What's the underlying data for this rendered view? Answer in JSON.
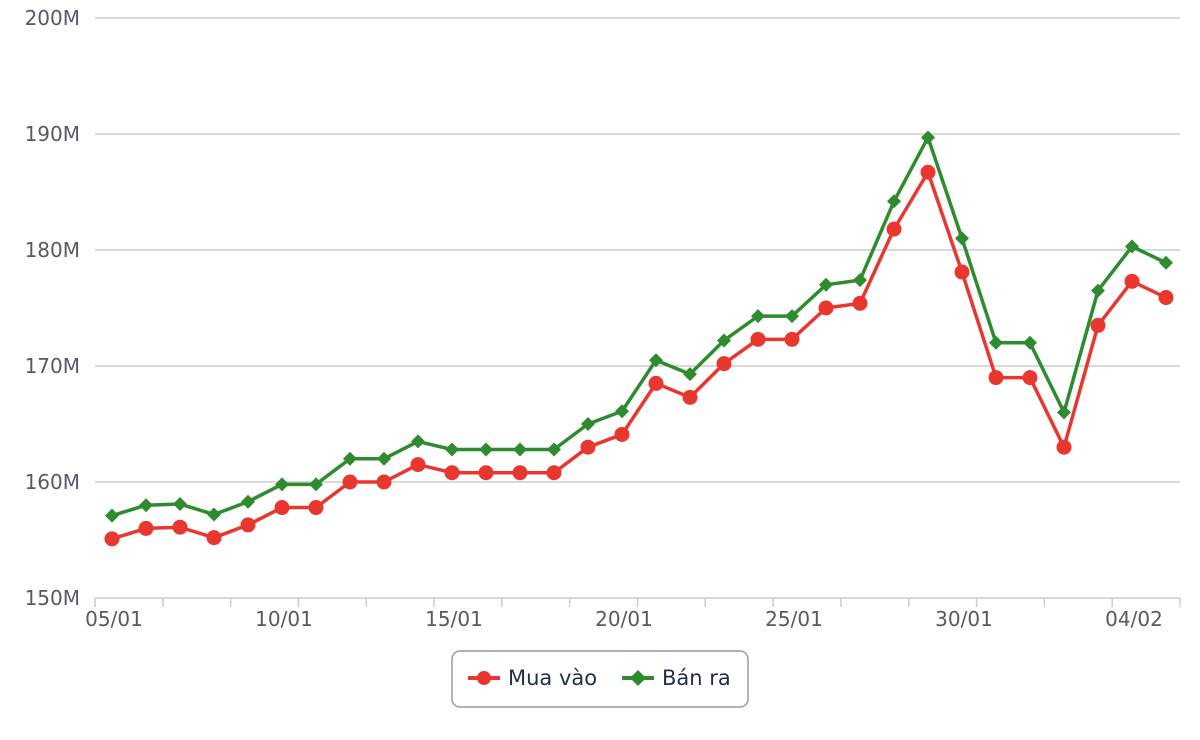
{
  "chart_data": {
    "type": "line",
    "title": "",
    "xlabel": "",
    "ylabel": "",
    "ylim": [
      150,
      200
    ],
    "y_unit_suffix": "M",
    "y_ticks": [
      "150M",
      "160M",
      "170M",
      "180M",
      "190M",
      "200M"
    ],
    "y_tick_values": [
      150,
      160,
      170,
      180,
      190,
      200
    ],
    "x_tick_labels": [
      {
        "index": 0,
        "label": "05/01"
      },
      {
        "index": 5,
        "label": "10/01"
      },
      {
        "index": 10,
        "label": "15/01"
      },
      {
        "index": 15,
        "label": "20/01"
      },
      {
        "index": 20,
        "label": "25/01"
      },
      {
        "index": 25,
        "label": "30/01"
      },
      {
        "index": 30,
        "label": "04/02"
      }
    ],
    "x": [
      "05/01",
      "06/01",
      "07/01",
      "08/01",
      "09/01",
      "10/01",
      "11/01",
      "12/01",
      "13/01",
      "14/01",
      "15/01",
      "16/01",
      "17/01",
      "18/01",
      "19/01",
      "20/01",
      "21/01",
      "22/01",
      "23/01",
      "24/01",
      "25/01",
      "26/01",
      "27/01",
      "28/01",
      "29/01",
      "30/01",
      "31/01",
      "01/02",
      "02/02",
      "03/02",
      "04/02",
      "05/02"
    ],
    "grid": true,
    "legend_position": "bottom-center",
    "series": [
      {
        "name": "Mua vào",
        "color": "#e8372f",
        "marker": "circle",
        "values": [
          155.1,
          156.0,
          156.1,
          155.2,
          156.3,
          157.8,
          157.8,
          160.0,
          160.0,
          161.5,
          160.8,
          160.8,
          160.8,
          160.8,
          163.0,
          164.1,
          168.5,
          167.3,
          170.2,
          172.3,
          172.3,
          175.0,
          175.4,
          181.8,
          186.7,
          178.1,
          169.0,
          169.0,
          163.0,
          173.5,
          177.3,
          175.9
        ]
      },
      {
        "name": "Bán ra",
        "color": "#2e8b2e",
        "marker": "diamond",
        "values": [
          157.1,
          158.0,
          158.1,
          157.2,
          158.3,
          159.8,
          159.8,
          162.0,
          162.0,
          163.5,
          162.8,
          162.8,
          162.8,
          162.8,
          165.0,
          166.1,
          170.5,
          169.3,
          172.2,
          174.3,
          174.3,
          177.0,
          177.4,
          184.2,
          189.7,
          181.0,
          172.0,
          172.0,
          166.0,
          176.5,
          180.3,
          178.9
        ]
      }
    ]
  }
}
